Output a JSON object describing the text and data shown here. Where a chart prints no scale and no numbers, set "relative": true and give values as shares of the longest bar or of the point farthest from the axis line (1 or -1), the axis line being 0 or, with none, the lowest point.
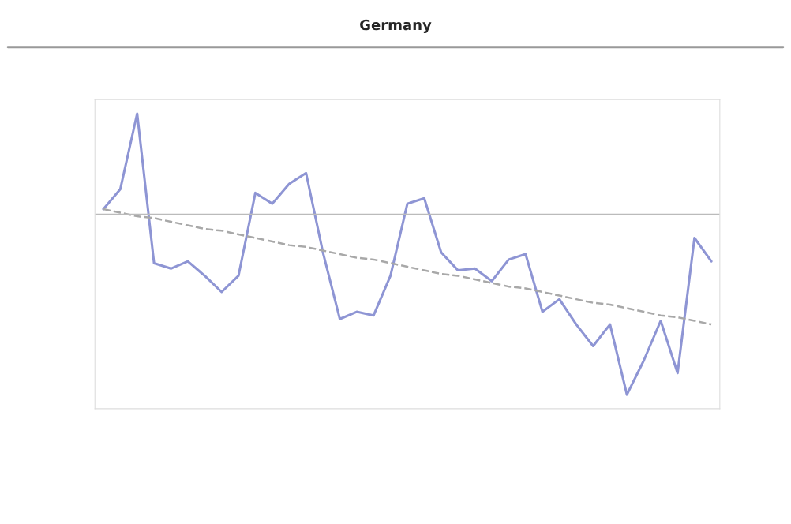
{
  "chart_data": {
    "type": "line",
    "title": "Germany",
    "relative": true,
    "categories": [
      null,
      null,
      null,
      null,
      null,
      null,
      null,
      null,
      null,
      null,
      null,
      null,
      null,
      null,
      null,
      null,
      null,
      null,
      null,
      null,
      null,
      null,
      null,
      null,
      null,
      null,
      null,
      null,
      null,
      null,
      null,
      null,
      null,
      null,
      null,
      null,
      null
    ],
    "series": [
      {
        "color": "#8e95d4",
        "line_style": "solid",
        "values": [
          0.03,
          0.14,
          0.56,
          -0.27,
          -0.3,
          -0.26,
          -0.34,
          -0.43,
          -0.34,
          0.12,
          0.06,
          0.17,
          0.23,
          -0.21,
          -0.58,
          -0.54,
          -0.56,
          -0.34,
          0.06,
          0.09,
          -0.21,
          -0.31,
          -0.3,
          -0.37,
          -0.25,
          -0.22,
          -0.54,
          -0.47,
          -0.61,
          -0.73,
          -0.61,
          -1,
          -0.81,
          -0.59,
          -0.88,
          -0.13,
          -0.26
        ]
      },
      {
        "color": "#a8a8a8",
        "line_style": "dashed",
        "values": [
          0.03,
          0.01,
          -0.01,
          -0.02,
          -0.04,
          -0.06,
          -0.08,
          -0.09,
          -0.11,
          -0.13,
          -0.15,
          -0.17,
          -0.18,
          -0.2,
          -0.22,
          -0.24,
          -0.25,
          -0.27,
          -0.29,
          -0.31,
          -0.33,
          -0.34,
          -0.36,
          -0.38,
          -0.4,
          -0.41,
          -0.43,
          -0.45,
          -0.47,
          -0.49,
          -0.5,
          -0.52,
          -0.54,
          -0.56,
          -0.57,
          -0.59,
          -0.61
        ]
      }
    ],
    "grid": false,
    "legend": false,
    "marker": "none"
  }
}
